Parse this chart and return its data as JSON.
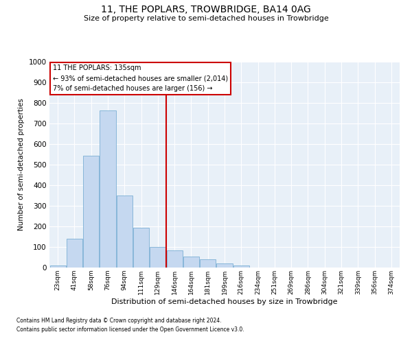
{
  "title1": "11, THE POPLARS, TROWBRIDGE, BA14 0AG",
  "title2": "Size of property relative to semi-detached houses in Trowbridge",
  "xlabel": "Distribution of semi-detached houses by size in Trowbridge",
  "ylabel": "Number of semi-detached properties",
  "footer1": "Contains HM Land Registry data © Crown copyright and database right 2024.",
  "footer2": "Contains public sector information licensed under the Open Government Licence v3.0.",
  "annotation_line1": "11 THE POPLARS: 135sqm",
  "annotation_line2": "← 93% of semi-detached houses are smaller (2,014)",
  "annotation_line3": "7% of semi-detached houses are larger (156) →",
  "bar_color": "#c5d8f0",
  "bar_edge_color": "#7bafd4",
  "vline_color": "#cc0000",
  "annotation_box_edge": "#cc0000",
  "annotation_box_face": "#ffffff",
  "background_color": "#e8f0f8",
  "grid_color": "#ffffff",
  "categories": [
    "23sqm",
    "41sqm",
    "58sqm",
    "76sqm",
    "94sqm",
    "111sqm",
    "129sqm",
    "146sqm",
    "164sqm",
    "181sqm",
    "199sqm",
    "216sqm",
    "234sqm",
    "251sqm",
    "269sqm",
    "286sqm",
    "304sqm",
    "321sqm",
    "339sqm",
    "356sqm",
    "374sqm"
  ],
  "values": [
    10,
    140,
    545,
    765,
    350,
    195,
    100,
    85,
    55,
    40,
    20,
    10,
    0,
    0,
    0,
    0,
    0,
    0,
    0,
    0,
    0
  ],
  "vline_x": 6.5,
  "ylim": [
    0,
    1000
  ],
  "yticks": [
    0,
    100,
    200,
    300,
    400,
    500,
    600,
    700,
    800,
    900,
    1000
  ]
}
